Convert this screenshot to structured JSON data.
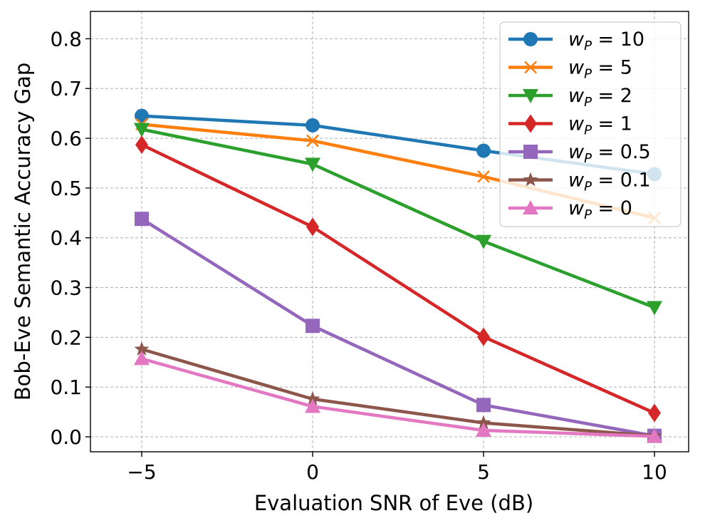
{
  "chart_data": {
    "type": "line",
    "title": "",
    "xlabel": "Evaluation SNR of Eve (dB)",
    "ylabel": "Bob-Eve Semantic Accuracy Gap",
    "x": [
      -5,
      0,
      5,
      10
    ],
    "xticks": [
      -5,
      0,
      5,
      10
    ],
    "xtick_labels": [
      "−5",
      "0",
      "5",
      "10"
    ],
    "yticks": [
      0.0,
      0.1,
      0.2,
      0.3,
      0.4,
      0.5,
      0.6,
      0.7,
      0.8
    ],
    "ytick_labels": [
      "0.0",
      "0.1",
      "0.2",
      "0.3",
      "0.4",
      "0.5",
      "0.6",
      "0.7",
      "0.8"
    ],
    "xlim": [
      -6.5,
      11.0
    ],
    "ylim": [
      -0.03,
      0.855
    ],
    "grid": true,
    "legend_position": "top-right",
    "series": [
      {
        "name": "w_P = 10",
        "legend_var": "w",
        "legend_sub": "P",
        "legend_rest": " = 10",
        "color": "#1f77b4",
        "marker": "circle",
        "values": [
          0.645,
          0.626,
          0.575,
          0.528
        ]
      },
      {
        "name": "w_P = 5",
        "legend_var": "w",
        "legend_sub": "P",
        "legend_rest": " = 5",
        "color": "#ff7f0e",
        "marker": "x",
        "values": [
          0.628,
          0.595,
          0.523,
          0.44
        ]
      },
      {
        "name": "w_P = 2",
        "legend_var": "w",
        "legend_sub": "P",
        "legend_rest": " = 2",
        "color": "#2ca02c",
        "marker": "triangle-down",
        "values": [
          0.618,
          0.548,
          0.393,
          0.26
        ]
      },
      {
        "name": "w_P = 1",
        "legend_var": "w",
        "legend_sub": "P",
        "legend_rest": " = 1",
        "color": "#d62728",
        "marker": "diamond",
        "values": [
          0.587,
          0.422,
          0.201,
          0.048
        ]
      },
      {
        "name": "w_P = 0.5",
        "legend_var": "w",
        "legend_sub": "P",
        "legend_rest": " = 0.5",
        "color": "#9467bd",
        "marker": "square",
        "values": [
          0.438,
          0.223,
          0.064,
          0.002
        ]
      },
      {
        "name": "w_P = 0.1",
        "legend_var": "w",
        "legend_sub": "P",
        "legend_rest": " = 0.1",
        "color": "#8c564b",
        "marker": "star",
        "values": [
          0.176,
          0.076,
          0.028,
          0.002
        ]
      },
      {
        "name": "w_P = 0",
        "legend_var": "w",
        "legend_sub": "P",
        "legend_rest": " = 0",
        "color": "#e377c2",
        "marker": "triangle-up",
        "values": [
          0.157,
          0.061,
          0.013,
          0.001
        ]
      }
    ]
  }
}
